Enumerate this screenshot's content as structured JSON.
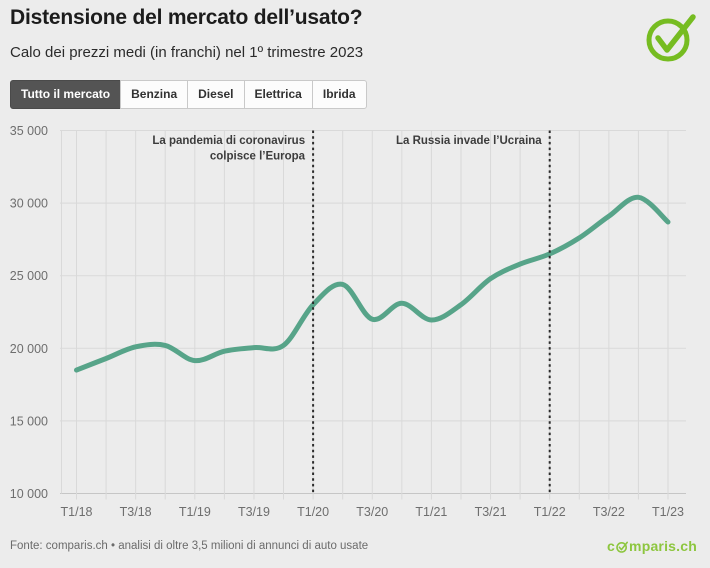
{
  "header": {
    "title": "Distensione del mercato dell’usato?",
    "subtitle": "Calo dei prezzi medi (in franchi) nel 1º trimestre 2023"
  },
  "tabs": [
    {
      "label": "Tutto il mercato",
      "active": true
    },
    {
      "label": "Benzina",
      "active": false
    },
    {
      "label": "Diesel",
      "active": false
    },
    {
      "label": "Elettrica",
      "active": false
    },
    {
      "label": "Ibrida",
      "active": false
    }
  ],
  "chart_data": {
    "type": "line",
    "title": "",
    "xlabel": "",
    "ylabel": "",
    "x": [
      "T1/18",
      "T2/18",
      "T3/18",
      "T4/18",
      "T1/19",
      "T2/19",
      "T3/19",
      "T4/19",
      "T1/20",
      "T2/20",
      "T3/20",
      "T4/20",
      "T1/21",
      "T2/21",
      "T3/21",
      "T4/21",
      "T1/22",
      "T2/22",
      "T3/22",
      "T4/22",
      "T1/23"
    ],
    "x_tick_labels": [
      "T1/18",
      "T3/18",
      "T1/19",
      "T3/19",
      "T1/20",
      "T3/20",
      "T1/21",
      "T3/21",
      "T1/22",
      "T3/22",
      "T1/23"
    ],
    "series": [
      {
        "name": "Tutto il mercato",
        "values": [
          18500,
          19300,
          20100,
          20200,
          19150,
          19800,
          20050,
          20200,
          23000,
          24400,
          22000,
          23100,
          21950,
          23000,
          24800,
          25800,
          26500,
          27600,
          29100,
          30400,
          28700
        ]
      }
    ],
    "ylim": [
      10000,
      35000
    ],
    "y_ticks": [
      10000,
      15000,
      20000,
      25000,
      30000,
      35000
    ],
    "y_tick_labels": [
      "10 000",
      "15 000",
      "20 000",
      "25 000",
      "30 000",
      "35 000"
    ],
    "grid": true,
    "legend": "none",
    "line_color": "#57a489",
    "annotations": [
      {
        "x_label": "T1/20",
        "lines": [
          "La pandemia di coronavirus",
          "colpisce l’Europa"
        ]
      },
      {
        "x_label": "T1/22",
        "lines": [
          "La Russia invade l’Ucraina"
        ]
      }
    ]
  },
  "footer": {
    "source": "Fonte: comparis.ch • analisi di oltre 3,5 milioni di annunci di auto usate",
    "logo_text_pre": "c",
    "logo_text_post": "mparis.ch"
  },
  "colors": {
    "background": "#ececec",
    "line_green": "#57a489",
    "logo_green": "#76bc21",
    "wordmark_green": "#8dc63f",
    "active_tab": "#545454",
    "gridline": "#d9d9d9"
  }
}
